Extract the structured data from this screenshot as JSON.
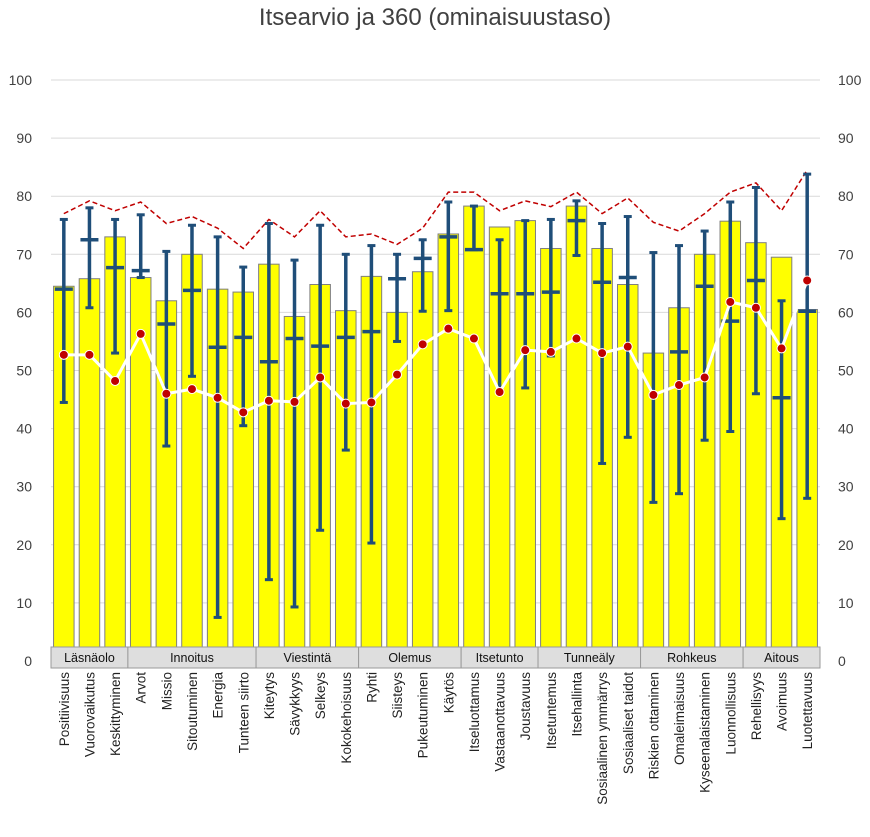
{
  "chart_data": {
    "type": "bar",
    "title": "Itsearvio ja 360 (ominaisuustaso)",
    "ylim": [
      0,
      100
    ],
    "yticks": [
      0,
      10,
      20,
      30,
      40,
      50,
      60,
      70,
      80,
      90,
      100
    ],
    "grid": true,
    "categories": [
      "Positiivisuus",
      "Vuorovaikutus",
      "Keskittyminen",
      "Arvot",
      "Missio",
      "Sitoutuminen",
      "Energia",
      "Tunteen siirto",
      "Kiteytys",
      "Sävykkyys",
      "Selkeys",
      "Kokokehoisuus",
      "Ryhti",
      "Siisteys",
      "Pukeutuminen",
      "Käytös",
      "Itseluottamus",
      "Vastaanottavuus",
      "Joustavuus",
      "Itsetuntemus",
      "Itsehallinta",
      "Sosiaalinen ymmärrys",
      "Sosiaaliset taidot",
      "Riskien ottaminen",
      "Omaleimaisuus",
      "Kyseenalaistaminen",
      "Luonnollisuus",
      "Rehellisyys",
      "Avoimuus",
      "Luotettavuus"
    ],
    "groups": [
      {
        "label": "Läsnäolo",
        "count": 3
      },
      {
        "label": "Innoitus",
        "count": 5
      },
      {
        "label": "Viestintä",
        "count": 4
      },
      {
        "label": "Olemus",
        "count": 4
      },
      {
        "label": "Itsetunto",
        "count": 3
      },
      {
        "label": "Tunneäly",
        "count": 4
      },
      {
        "label": "Rohkeus",
        "count": 4
      },
      {
        "label": "Aitous",
        "count": 3
      }
    ],
    "series": [
      {
        "type": "bar",
        "color": "#FFFF00",
        "values": [
          64.5,
          65.8,
          73,
          66,
          62,
          70,
          64,
          63.5,
          68.3,
          59.3,
          64.8,
          60.3,
          66.2,
          60,
          67,
          73.5,
          78.3,
          74.7,
          75.8,
          71,
          78.3,
          71,
          64.8,
          53,
          60.8,
          70,
          75.7,
          72,
          69.5,
          60.5
        ]
      },
      {
        "type": "range",
        "color": "#1F4E79",
        "low": [
          44.5,
          60.8,
          53,
          66,
          37,
          49,
          7.5,
          40.5,
          14,
          9.3,
          22.5,
          36.3,
          20.3,
          55,
          60.2,
          60.3,
          70.8,
          46.5,
          47,
          52.5,
          69.8,
          34,
          38.5,
          27.3,
          28.8,
          38,
          39.5,
          46,
          24.5,
          28
        ],
        "high": [
          76,
          78,
          76,
          76.8,
          70.5,
          75,
          73,
          67.8,
          75.3,
          69,
          75,
          70,
          71.5,
          70,
          72.5,
          79,
          78.3,
          72.5,
          75.8,
          76,
          79.2,
          75.3,
          76.5,
          70.3,
          71.5,
          74,
          79,
          81.5,
          62,
          83.8
        ],
        "mid": [
          64,
          72.5,
          67.7,
          67.2,
          58,
          63.8,
          54,
          55.7,
          51.5,
          55.5,
          54.2,
          55.7,
          56.7,
          65.8,
          69.3,
          73,
          70.8,
          63.2,
          63.2,
          63.5,
          75.8,
          65.2,
          66,
          null,
          53.2,
          64.5,
          58.5,
          65.5,
          45.3,
          60.2
        ]
      },
      {
        "type": "line",
        "color": "#ffffff",
        "marker_color": "#C00000",
        "values": [
          52.7,
          52.7,
          48.2,
          56.3,
          46,
          46.8,
          45.3,
          42.8,
          44.8,
          44.6,
          48.8,
          44.3,
          44.5,
          49.3,
          54.5,
          57.2,
          55.5,
          46.3,
          53.5,
          53.2,
          55.5,
          53,
          54.1,
          45.8,
          47.5,
          48.8,
          61.8,
          60.8,
          53.8,
          65.5
        ]
      },
      {
        "type": "line",
        "style": "dashed",
        "color": "#C00000",
        "values": [
          77,
          79.2,
          77.5,
          79,
          75.3,
          76.5,
          74.5,
          71,
          76,
          73,
          77.5,
          73,
          73.5,
          71.7,
          74.5,
          80.7,
          80.7,
          77.5,
          79.2,
          78.2,
          80.7,
          77,
          79.7,
          75.5,
          74,
          77,
          80.7,
          82.3,
          77.5,
          84.5
        ]
      }
    ]
  }
}
